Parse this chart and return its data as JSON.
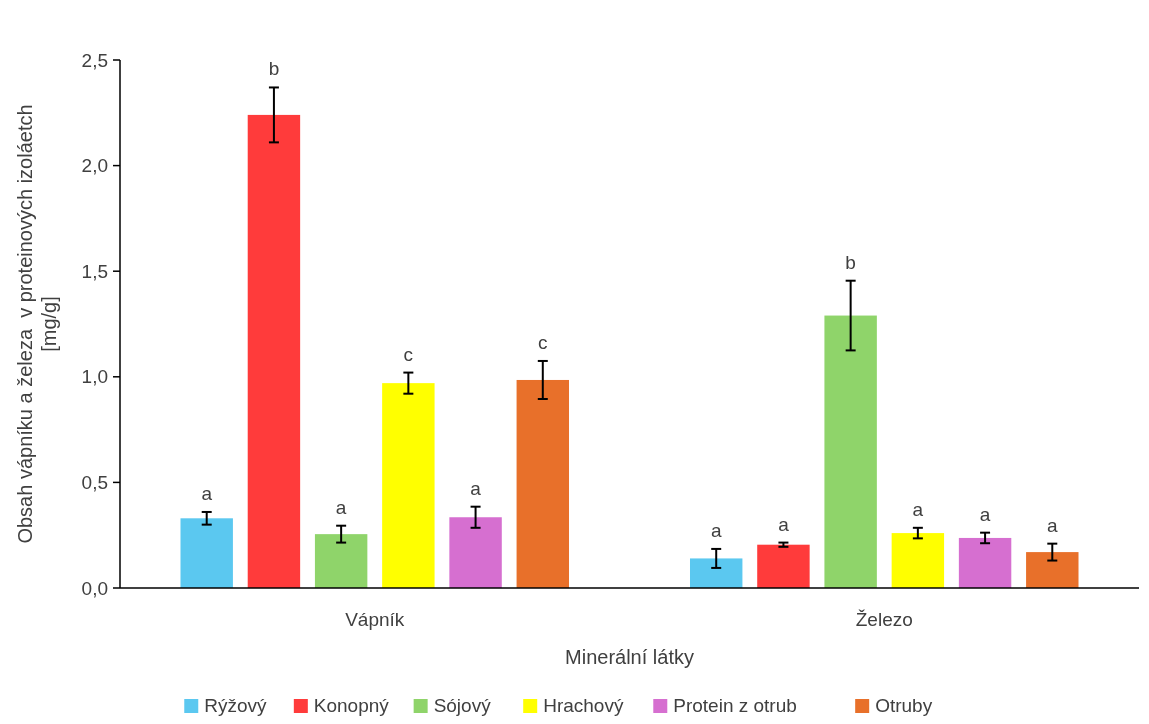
{
  "chart_data": {
    "type": "bar",
    "xlabel": "Minerální látky",
    "ylabel": "Obsah vápníku a železa  v proteinových izoláetch\n[mg/g]",
    "categories": [
      "Vápník",
      "Železo"
    ],
    "ylim": [
      0,
      2.5
    ],
    "yticks": [
      {
        "value": 0,
        "label": "0,0"
      },
      {
        "value": 0.5,
        "label": "0,5"
      },
      {
        "value": 1,
        "label": "1,0"
      },
      {
        "value": 1.5,
        "label": "1,5"
      },
      {
        "value": 2,
        "label": "2,0"
      },
      {
        "value": 2.5,
        "label": "2,5"
      }
    ],
    "legend": "bottom",
    "grid": false,
    "series": [
      {
        "name": "Rýžový",
        "color": "#5bc8f0",
        "values": [
          0.33,
          0.14
        ],
        "errors": [
          0.03,
          0.045
        ],
        "value_labels": [
          "a",
          "a"
        ]
      },
      {
        "name": "Konopný",
        "color": "#ff3b3b",
        "values": [
          2.24,
          0.205
        ],
        "errors": [
          0.13,
          0.01
        ],
        "value_labels": [
          "b",
          "a"
        ]
      },
      {
        "name": "Sójový",
        "color": "#8fd46a",
        "values": [
          0.255,
          1.29
        ],
        "errors": [
          0.04,
          0.165
        ],
        "value_labels": [
          "a",
          "b"
        ]
      },
      {
        "name": "Hrachový",
        "color": "#ffff00",
        "values": [
          0.97,
          0.26
        ],
        "errors": [
          0.05,
          0.025
        ],
        "value_labels": [
          "c",
          "a"
        ]
      },
      {
        "name": "Protein z otrub",
        "color": "#d66fd0",
        "values": [
          0.335,
          0.237
        ],
        "errors": [
          0.05,
          0.025
        ],
        "value_labels": [
          "a",
          "a"
        ]
      },
      {
        "name": "Otruby",
        "color": "#e8702a",
        "values": [
          0.985,
          0.17
        ],
        "errors": [
          0.09,
          0.04
        ],
        "value_labels": [
          "c",
          "a"
        ]
      }
    ]
  }
}
